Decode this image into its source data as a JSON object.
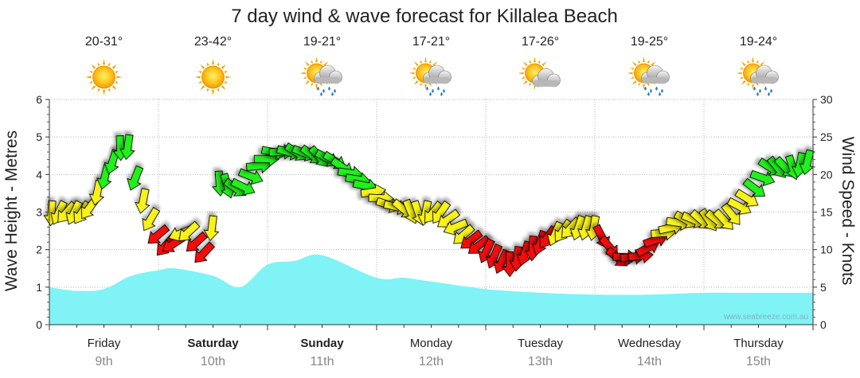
{
  "chart_data": {
    "type": "line",
    "title": "7 day wind & wave forecast for Killalea Beach",
    "ylabel_left": "Wave Height - Metres",
    "ylabel_right": "Wind Speed - Knots",
    "left_axis": {
      "range": [
        0,
        6
      ],
      "ticks": [
        "0",
        "1",
        "2",
        "3",
        "4",
        "5",
        "6"
      ]
    },
    "right_axis": {
      "range": [
        0,
        30
      ],
      "ticks": [
        "0",
        "5",
        "10",
        "15",
        "20",
        "25",
        "30"
      ]
    },
    "watermark": "www.seabreeze.com.au",
    "days": [
      {
        "name": "Friday",
        "date": "9th",
        "bold": false,
        "temp": "20-31°",
        "icon": "sun-icon"
      },
      {
        "name": "Saturday",
        "date": "10th",
        "bold": true,
        "temp": "23-42°",
        "icon": "sun-icon"
      },
      {
        "name": "Sunday",
        "date": "11th",
        "bold": true,
        "temp": "19-21°",
        "icon": "sun-cloud-rain-icon"
      },
      {
        "name": "Monday",
        "date": "12th",
        "bold": false,
        "temp": "17-21°",
        "icon": "sun-cloud-rain-icon"
      },
      {
        "name": "Tuesday",
        "date": "13th",
        "bold": false,
        "temp": "17-26°",
        "icon": "sun-cloud-icon"
      },
      {
        "name": "Wednesday",
        "date": "14th",
        "bold": false,
        "temp": "19-25°",
        "icon": "sun-cloud-rain-icon"
      },
      {
        "name": "Thursday",
        "date": "15th",
        "bold": false,
        "temp": "19-24°",
        "icon": "sun-cloud-rain-icon"
      }
    ],
    "series": [
      {
        "name": "Wave Height",
        "unit": "m",
        "x_days": [
          0,
          0.25,
          0.5,
          0.75,
          1.0,
          1.15,
          1.5,
          1.75,
          2.0,
          2.25,
          2.5,
          3.0,
          3.25,
          3.5,
          4.0,
          4.5,
          5.0,
          5.5,
          6.0,
          6.5,
          7.0
        ],
        "values": [
          1.0,
          0.9,
          0.95,
          1.3,
          1.45,
          1.5,
          1.3,
          1.0,
          1.6,
          1.7,
          1.85,
          1.25,
          1.25,
          1.15,
          0.95,
          0.85,
          0.8,
          0.8,
          0.85,
          0.85,
          0.85
        ]
      },
      {
        "name": "Wind Speed",
        "unit": "knots",
        "x_days": [
          0,
          0.2,
          0.35,
          0.55,
          0.7,
          0.8,
          0.9,
          1.0,
          1.1,
          1.25,
          1.45,
          1.55,
          1.75,
          1.9,
          2.05,
          2.3,
          2.6,
          2.85,
          3.1,
          3.35,
          3.6,
          3.8,
          4.0,
          4.2,
          4.4,
          4.6,
          4.8,
          5.0,
          5.2,
          5.4,
          5.6,
          5.8,
          6.0,
          6.2,
          6.4,
          6.6,
          6.8,
          7.0
        ],
        "values": [
          15,
          15,
          15,
          21,
          25,
          19,
          15,
          12,
          10,
          13,
          9,
          19,
          18,
          21,
          23,
          23,
          22,
          19,
          16,
          15,
          15,
          12,
          10,
          8,
          10,
          12,
          13,
          13,
          9,
          9,
          12,
          14,
          14,
          14,
          17,
          21,
          21,
          22
        ]
      }
    ],
    "wind_color_thresholds": {
      "green_at_or_above": 18,
      "yellow_at_or_above": 12
    }
  }
}
